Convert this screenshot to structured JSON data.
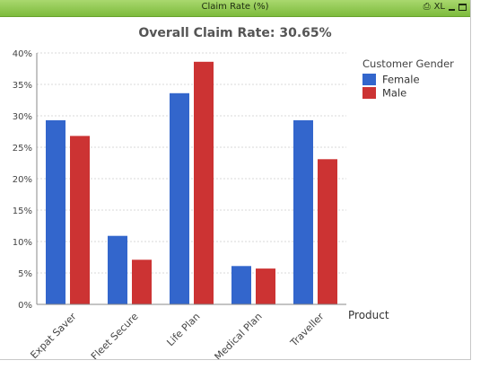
{
  "window": {
    "title": "Claim Rate (%)",
    "controls": {
      "print_icon": "print-icon",
      "xl_label": "XL",
      "minimize_icon": "minimize-icon",
      "maximize_icon": "maximize-icon"
    }
  },
  "chart_data": {
    "type": "bar",
    "title": "Overall Claim Rate: 30.65%",
    "xlabel": "Product",
    "ylabel": "",
    "categories": [
      "Expat Saver",
      "Fleet Secure",
      "Life Plan",
      "Medical Plan",
      "Traveller"
    ],
    "series": [
      {
        "name": "Female",
        "color": "#3366cc",
        "values": [
          29.3,
          10.9,
          33.6,
          6.1,
          29.3
        ]
      },
      {
        "name": "Male",
        "color": "#cc3333",
        "values": [
          26.8,
          7.1,
          38.6,
          5.7,
          23.1
        ]
      }
    ],
    "ylim": [
      0,
      40
    ],
    "yticks": [
      0,
      5,
      10,
      15,
      20,
      25,
      30,
      35,
      40
    ],
    "ytick_labels": [
      "0%",
      "5%",
      "10%",
      "15%",
      "20%",
      "25%",
      "30%",
      "35%",
      "40%"
    ],
    "legend": {
      "title": "Customer Gender",
      "placement": "top-right"
    },
    "grid": true
  }
}
